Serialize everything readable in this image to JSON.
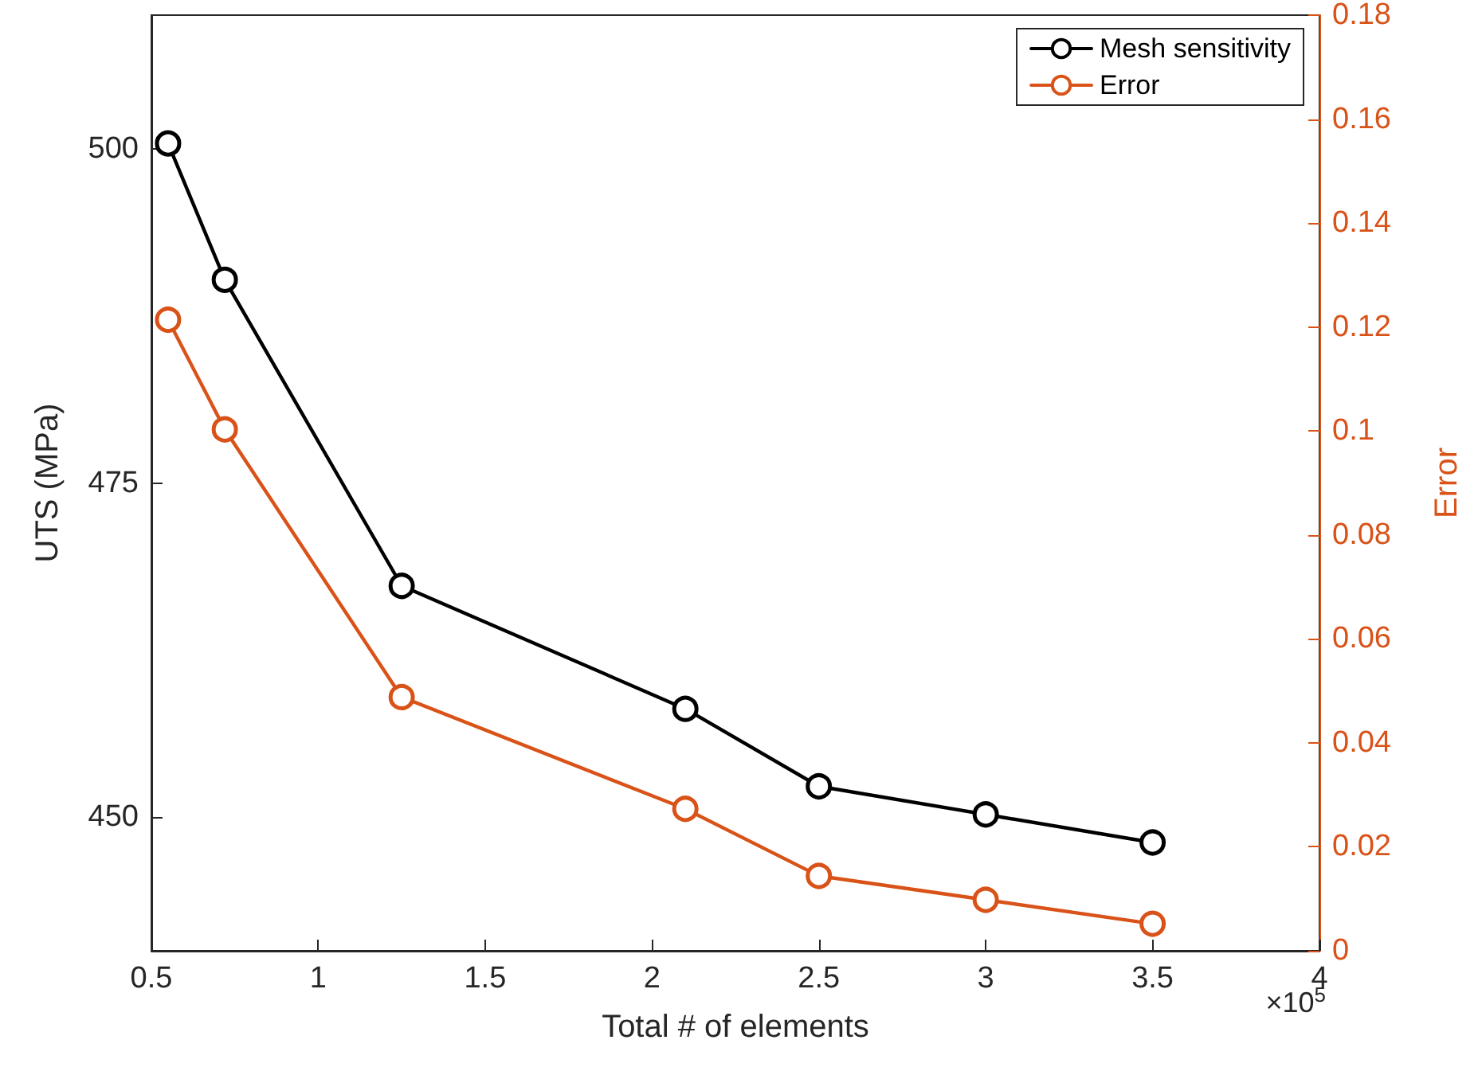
{
  "chart_data": {
    "type": "line",
    "xlabel": "Total # of elements",
    "ylabel": "UTS (MPa)",
    "y2label": "Error",
    "x": [
      0.55,
      0.72,
      1.25,
      2.1,
      2.5,
      3.0,
      3.5
    ],
    "series": [
      {
        "name": "Mesh sensitivity",
        "color": "#000000",
        "values": [
          500.4,
          490.2,
          467.3,
          458.1,
          452.3,
          450.2,
          448.1
        ]
      },
      {
        "name": "Error",
        "color": "#d95319",
        "axis": "y2",
        "values": [
          0.1214,
          0.1003,
          0.0488,
          0.0273,
          0.0144,
          0.0098,
          0.0052
        ]
      }
    ],
    "xlim": [
      0.5,
      4
    ],
    "xticks": [
      0.5,
      1,
      1.5,
      2,
      2.5,
      3,
      3.5,
      4
    ],
    "ylim": [
      440,
      510
    ],
    "yticks": [
      450,
      475,
      500
    ],
    "y2lim": [
      0,
      0.18
    ],
    "y2ticks": [
      0,
      0.02,
      0.04,
      0.06,
      0.08,
      0.1,
      0.12,
      0.14,
      0.16,
      0.18
    ],
    "annotations": [
      "×10$^{5}$"
    ],
    "legend": "top right",
    "grid": false,
    "marker": "circle",
    "line_style": "solid"
  }
}
